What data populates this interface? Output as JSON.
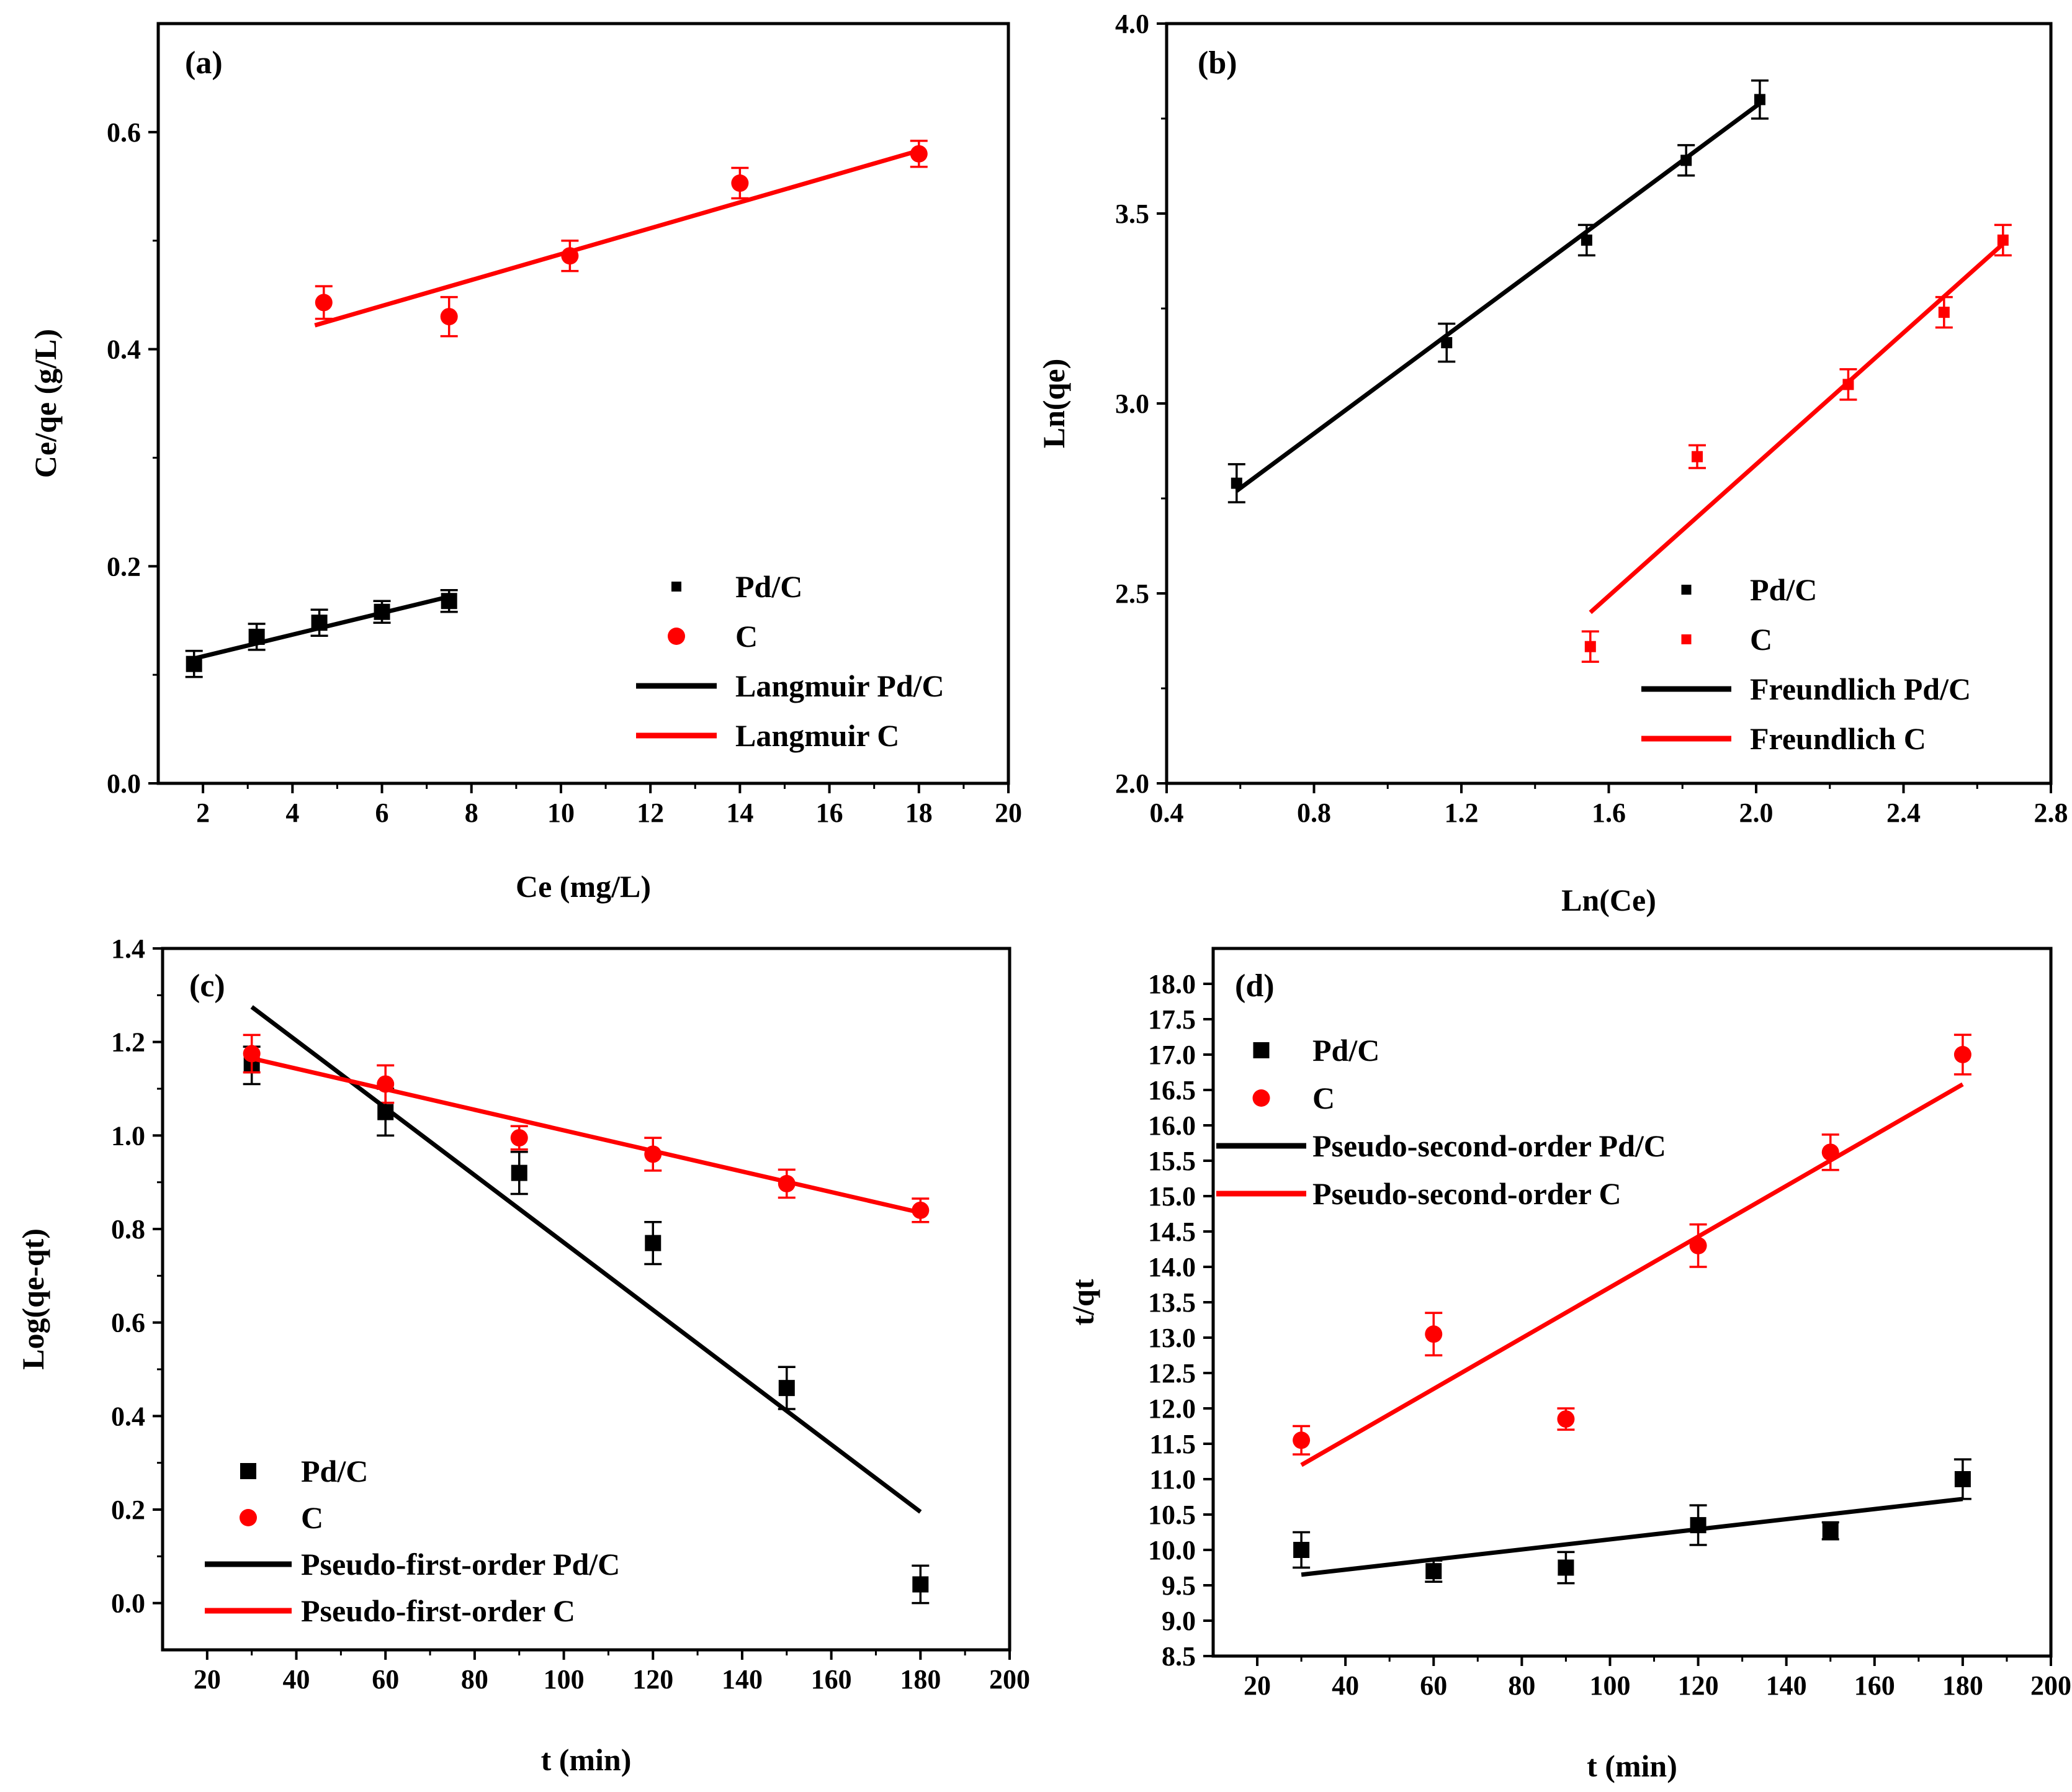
{
  "colors": {
    "pdc": "#000000",
    "c": "#ff0000",
    "axis": "#000000"
  },
  "chart_data": [
    {
      "type": "scatter",
      "panel": "(a)",
      "xlabel": "Ce (mg/L)",
      "ylabel": "Ce/qe (g/L)",
      "xlim": [
        1,
        20
      ],
      "ylim": [
        0.0,
        0.7
      ],
      "xticks": [
        2,
        4,
        6,
        8,
        10,
        12,
        14,
        16,
        18,
        20
      ],
      "yticks": [
        0.0,
        0.2,
        0.4,
        0.6
      ],
      "x_tick_labels": [
        "2",
        "4",
        "6",
        "8",
        "10",
        "12",
        "14",
        "16",
        "18",
        "20"
      ],
      "y_tick_labels": [
        "0.0",
        "0.2",
        "0.4",
        "0.6"
      ],
      "series": [
        {
          "name": "Pd/C",
          "kind": "points",
          "marker": "square",
          "color": "#000000",
          "x": [
            1.8,
            3.2,
            4.6,
            6.0,
            7.5
          ],
          "y": [
            0.11,
            0.135,
            0.148,
            0.158,
            0.168
          ],
          "err": [
            0.012,
            0.012,
            0.012,
            0.01,
            0.01
          ]
        },
        {
          "name": "C",
          "kind": "points",
          "marker": "circle",
          "color": "#ff0000",
          "x": [
            4.7,
            7.5,
            10.2,
            14.0,
            18.0
          ],
          "y": [
            0.443,
            0.43,
            0.486,
            0.553,
            0.58
          ],
          "err": [
            0.015,
            0.018,
            0.014,
            0.014,
            0.012
          ]
        },
        {
          "name": "Langmuir Pd/C",
          "kind": "line",
          "color": "#000000",
          "x": [
            1.8,
            7.5
          ],
          "y": [
            0.115,
            0.172
          ]
        },
        {
          "name": "Langmuir C",
          "kind": "line",
          "color": "#ff0000",
          "x": [
            4.5,
            18.0
          ],
          "y": [
            0.422,
            0.583
          ]
        }
      ],
      "legend": [
        "Pd/C",
        "C",
        "Langmuir Pd/C",
        "Langmuir C"
      ],
      "legend_position": "bottom-right"
    },
    {
      "type": "scatter",
      "panel": "(b)",
      "xlabel": "Ln(Ce)",
      "ylabel": "Ln(qe)",
      "xlim": [
        0.4,
        2.8
      ],
      "ylim": [
        2.0,
        4.0
      ],
      "xticks": [
        0.4,
        0.8,
        1.2,
        1.6,
        2.0,
        2.4,
        2.8
      ],
      "yticks": [
        2.0,
        2.5,
        3.0,
        3.5,
        4.0
      ],
      "x_tick_labels": [
        "0.4",
        "0.8",
        "1.2",
        "1.6",
        "2.0",
        "2.4",
        "2.8"
      ],
      "y_tick_labels": [
        "2.0",
        "2.5",
        "3.0",
        "3.5",
        "4.0"
      ],
      "series": [
        {
          "name": "Pd/C",
          "kind": "points",
          "marker": "square",
          "color": "#000000",
          "x": [
            0.59,
            1.16,
            1.54,
            1.81,
            2.01
          ],
          "y": [
            2.79,
            3.16,
            3.43,
            3.64,
            3.8
          ],
          "err": [
            0.05,
            0.05,
            0.04,
            0.04,
            0.05
          ]
        },
        {
          "name": "C",
          "kind": "points",
          "marker": "square",
          "color": "#ff0000",
          "x": [
            1.55,
            1.84,
            2.25,
            2.51,
            2.67
          ],
          "y": [
            2.36,
            2.86,
            3.05,
            3.24,
            3.43
          ],
          "err": [
            0.04,
            0.03,
            0.04,
            0.04,
            0.04
          ]
        },
        {
          "name": "Freundlich Pd/C",
          "kind": "line",
          "color": "#000000",
          "x": [
            0.59,
            2.01
          ],
          "y": [
            2.77,
            3.79
          ]
        },
        {
          "name": "Freundlich C",
          "kind": "line",
          "color": "#ff0000",
          "x": [
            1.55,
            2.67
          ],
          "y": [
            2.45,
            3.42
          ]
        }
      ],
      "legend": [
        "Pd/C",
        "C",
        "Freundlich Pd/C",
        "Freundlich C"
      ],
      "legend_position": "bottom-right"
    },
    {
      "type": "scatter",
      "panel": "(c)",
      "xlabel": "t (min)",
      "ylabel": "Log(qe-qt)",
      "xlim": [
        10,
        200
      ],
      "ylim": [
        -0.1,
        1.4
      ],
      "xticks": [
        20,
        40,
        60,
        80,
        100,
        120,
        140,
        160,
        180,
        200
      ],
      "yticks": [
        0.0,
        0.2,
        0.4,
        0.6,
        0.8,
        1.0,
        1.2,
        1.4
      ],
      "x_tick_labels": [
        "20",
        "40",
        "60",
        "80",
        "100",
        "120",
        "140",
        "160",
        "180",
        "200"
      ],
      "y_tick_labels": [
        "0.0",
        "0.2",
        "0.4",
        "0.6",
        "0.8",
        "1.0",
        "1.2",
        "1.4"
      ],
      "series": [
        {
          "name": "Pd/C",
          "kind": "points",
          "marker": "square",
          "color": "#000000",
          "x": [
            30,
            60,
            90,
            120,
            150,
            180
          ],
          "y": [
            1.15,
            1.05,
            0.92,
            0.77,
            0.46,
            0.04
          ],
          "err": [
            0.04,
            0.05,
            0.045,
            0.045,
            0.045,
            0.04
          ]
        },
        {
          "name": "C",
          "kind": "points",
          "marker": "circle",
          "color": "#ff0000",
          "x": [
            30,
            60,
            90,
            120,
            150,
            180
          ],
          "y": [
            1.175,
            1.11,
            0.995,
            0.96,
            0.897,
            0.84
          ],
          "err": [
            0.04,
            0.04,
            0.025,
            0.035,
            0.03,
            0.025
          ]
        },
        {
          "name": "Pseudo-first-order Pd/C",
          "kind": "line",
          "color": "#000000",
          "x": [
            30,
            180
          ],
          "y": [
            1.275,
            0.195
          ]
        },
        {
          "name": "Pseudo-first-order C",
          "kind": "line",
          "color": "#ff0000",
          "x": [
            30,
            180
          ],
          "y": [
            1.165,
            0.835
          ]
        }
      ],
      "legend": [
        "Pd/C",
        "C",
        "Pseudo-first-order Pd/C",
        "Pseudo-first-order C"
      ],
      "legend_position": "bottom-left"
    },
    {
      "type": "scatter",
      "panel": "(d)",
      "xlabel": "t (min)",
      "ylabel": "t/qt",
      "xlim": [
        10,
        200
      ],
      "ylim": [
        8.5,
        18.5
      ],
      "xticks": [
        20,
        40,
        60,
        80,
        100,
        120,
        140,
        160,
        180,
        200
      ],
      "yticks": [
        8.5,
        9.0,
        9.5,
        10.0,
        10.5,
        11.0,
        11.5,
        12.0,
        12.5,
        13.0,
        13.5,
        14.0,
        14.5,
        15.0,
        15.5,
        16.0,
        16.5,
        17.0,
        17.5,
        18.0
      ],
      "x_tick_labels": [
        "20",
        "40",
        "60",
        "80",
        "100",
        "120",
        "140",
        "160",
        "180",
        "200"
      ],
      "y_tick_labels": [
        "8.5",
        "9.0",
        "9.5",
        "10.0",
        "10.5",
        "11.0",
        "11.5",
        "12.0",
        "12.5",
        "13.0",
        "13.5",
        "14.0",
        "14.5",
        "15.0",
        "15.5",
        "16.0",
        "16.5",
        "17.0",
        "17.5",
        "18.0"
      ],
      "series": [
        {
          "name": "Pd/C",
          "kind": "points",
          "marker": "square",
          "color": "#000000",
          "x": [
            30,
            60,
            90,
            120,
            150,
            180
          ],
          "y": [
            10.0,
            9.7,
            9.75,
            10.35,
            10.27,
            11.0
          ],
          "err": [
            0.25,
            0.15,
            0.22,
            0.28,
            0.12,
            0.28
          ]
        },
        {
          "name": "C",
          "kind": "points",
          "marker": "circle",
          "color": "#ff0000",
          "x": [
            30,
            60,
            90,
            120,
            150,
            180
          ],
          "y": [
            11.55,
            13.05,
            11.85,
            14.3,
            15.62,
            17.0
          ],
          "err": [
            0.2,
            0.3,
            0.15,
            0.3,
            0.25,
            0.28
          ]
        },
        {
          "name": "Pseudo-second-order Pd/C",
          "kind": "line",
          "color": "#000000",
          "x": [
            30,
            180
          ],
          "y": [
            9.65,
            10.72
          ]
        },
        {
          "name": "Pseudo-second-order C",
          "kind": "line",
          "color": "#ff0000",
          "x": [
            30,
            180
          ],
          "y": [
            11.2,
            16.58
          ]
        }
      ],
      "legend": [
        "Pd/C",
        "C",
        "Pseudo-second-order Pd/C",
        "Pseudo-second-order C"
      ],
      "legend_position": "top-left"
    }
  ]
}
